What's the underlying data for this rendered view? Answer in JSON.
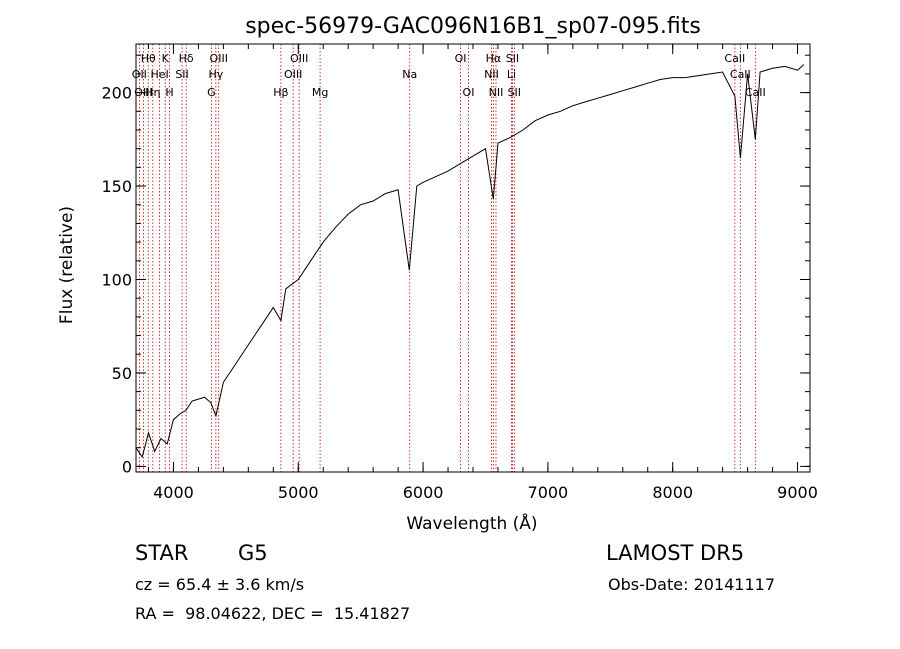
{
  "chart_data": {
    "type": "line",
    "title": "spec-56979-GAC096N16B1_sp07-095.fits",
    "xlabel": "Wavelength (Å)",
    "ylabel": "Flux (relative)",
    "xlim": [
      3700,
      9100
    ],
    "ylim": [
      -3,
      226
    ],
    "xticks": [
      4000,
      5000,
      6000,
      7000,
      8000,
      9000
    ],
    "yticks": [
      0,
      50,
      100,
      150,
      200
    ],
    "grid": false,
    "series": [
      {
        "x": [
          3700,
          3750,
          3800,
          3850,
          3900,
          3950,
          4000,
          4050,
          4100,
          4150,
          4200,
          4250,
          4300,
          4340,
          4400,
          4500,
          4600,
          4700,
          4800,
          4861,
          4900,
          5000,
          5100,
          5200,
          5300,
          5400,
          5500,
          5600,
          5700,
          5800,
          5890,
          5950,
          6000,
          6100,
          6200,
          6300,
          6400,
          6500,
          6563,
          6600,
          6700,
          6800,
          6900,
          7000,
          7100,
          7200,
          7300,
          7400,
          7500,
          7600,
          7700,
          7800,
          7900,
          8000,
          8100,
          8200,
          8300,
          8400,
          8498,
          8542,
          8600,
          8662,
          8700,
          8800,
          8900,
          9000,
          9050
        ],
        "y": [
          10,
          5,
          18,
          8,
          15,
          12,
          25,
          28,
          30,
          35,
          36,
          37,
          34,
          27,
          45,
          55,
          65,
          75,
          85,
          78,
          95,
          100,
          110,
          120,
          128,
          135,
          140,
          142,
          146,
          148,
          105,
          150,
          152,
          155,
          158,
          162,
          166,
          170,
          143,
          173,
          176,
          180,
          185,
          188,
          190,
          193,
          195,
          197,
          199,
          201,
          203,
          205,
          207,
          208,
          208,
          209,
          210,
          211,
          198,
          165,
          210,
          175,
          211,
          213,
          214,
          212,
          215
        ]
      }
    ],
    "line_labels": [
      {
        "text": "Hθ",
        "x": 3798,
        "row": 1
      },
      {
        "text": "OII",
        "x": 3727,
        "row": 2
      },
      {
        "text": "OIII",
        "x": 3760,
        "row": 3
      },
      {
        "text": "K",
        "x": 3934,
        "row": 1
      },
      {
        "text": "HeI",
        "x": 3889,
        "row": 2
      },
      {
        "text": "Hη",
        "x": 3835,
        "row": 3
      },
      {
        "text": "H",
        "x": 3969,
        "row": 3
      },
      {
        "text": "Hδ",
        "x": 4102,
        "row": 1
      },
      {
        "text": "SII",
        "x": 4069,
        "row": 2
      },
      {
        "text": "OIII",
        "x": 4363,
        "row": 1
      },
      {
        "text": "Hγ",
        "x": 4340,
        "row": 2
      },
      {
        "text": "G",
        "x": 4304,
        "row": 3
      },
      {
        "text": "OIII",
        "x": 5007,
        "row": 1
      },
      {
        "text": "OIII",
        "x": 4959,
        "row": 2
      },
      {
        "text": "Hβ",
        "x": 4861,
        "row": 3
      },
      {
        "text": "Mg",
        "x": 5175,
        "row": 3
      },
      {
        "text": "Na",
        "x": 5893,
        "row": 2
      },
      {
        "text": "OI",
        "x": 6300,
        "row": 1
      },
      {
        "text": "OI",
        "x": 6364,
        "row": 3
      },
      {
        "text": "Hα",
        "x": 6563,
        "row": 1
      },
      {
        "text": "NII",
        "x": 6548,
        "row": 2
      },
      {
        "text": "NII",
        "x": 6584,
        "row": 3
      },
      {
        "text": "SII",
        "x": 6716,
        "row": 1
      },
      {
        "text": "Li",
        "x": 6708,
        "row": 2
      },
      {
        "text": "SII",
        "x": 6731,
        "row": 3
      },
      {
        "text": "CaII",
        "x": 8498,
        "row": 1
      },
      {
        "text": "CaII",
        "x": 8542,
        "row": 2
      },
      {
        "text": "CaII",
        "x": 8662,
        "row": 3
      }
    ],
    "line_marker_color": "#c00000"
  },
  "info": {
    "class": "STAR",
    "subclass": "G5",
    "survey": "LAMOST DR5",
    "cz": "cz = 65.4 ± 3.6 km/s",
    "obs_date": "Obs-Date: 20141117",
    "radec": "RA =  98.04622, DEC =  15.41827"
  }
}
